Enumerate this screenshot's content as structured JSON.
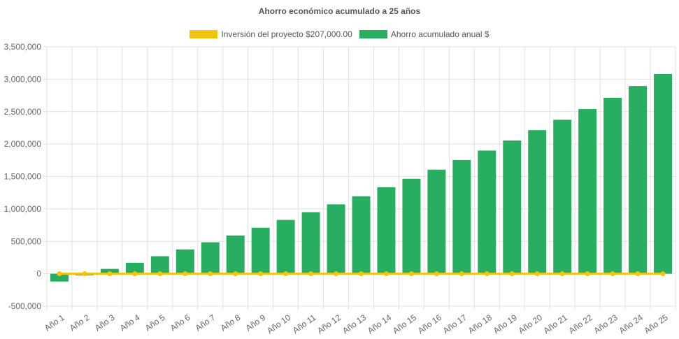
{
  "chart_data": {
    "type": "bar",
    "title": "Ahorro económico acumulado a 25 años",
    "categories": [
      "Año 1",
      "Año 2",
      "Año 3",
      "Año 4",
      "Año 5",
      "Año 6",
      "Año 7",
      "Año 8",
      "Año 9",
      "Año 10",
      "Año 11",
      "Año 12",
      "Año 13",
      "Año 14",
      "Año 15",
      "Año 16",
      "Año 17",
      "Año 18",
      "Año 19",
      "Año 20",
      "Año 21",
      "Año 22",
      "Año 23",
      "Año 24",
      "Año 25"
    ],
    "series": [
      {
        "name": "Inversión del proyecto $207,000.00",
        "type": "line",
        "color": "#f1c40f",
        "values": [
          0,
          0,
          0,
          0,
          0,
          0,
          0,
          0,
          0,
          0,
          0,
          0,
          0,
          0,
          0,
          0,
          0,
          0,
          0,
          0,
          0,
          0,
          0,
          0,
          0
        ]
      },
      {
        "name": "Ahorro acumulado anual $",
        "type": "bar",
        "color": "#27ae60",
        "values": [
          -120000,
          -25000,
          75000,
          170000,
          270000,
          375000,
          485000,
          590000,
          710000,
          830000,
          950000,
          1070000,
          1195000,
          1335000,
          1465000,
          1605000,
          1755000,
          1900000,
          2055000,
          2215000,
          2375000,
          2540000,
          2715000,
          2895000,
          3080000
        ]
      }
    ],
    "ylim": [
      -500000,
      3500000
    ],
    "yticks": [
      "3,500,000",
      "3,000,000",
      "2,500,000",
      "2,000,000",
      "1,500,000",
      "1,000,000",
      "500,000",
      "0",
      "-500,000"
    ],
    "grid": true,
    "legend": "top"
  }
}
